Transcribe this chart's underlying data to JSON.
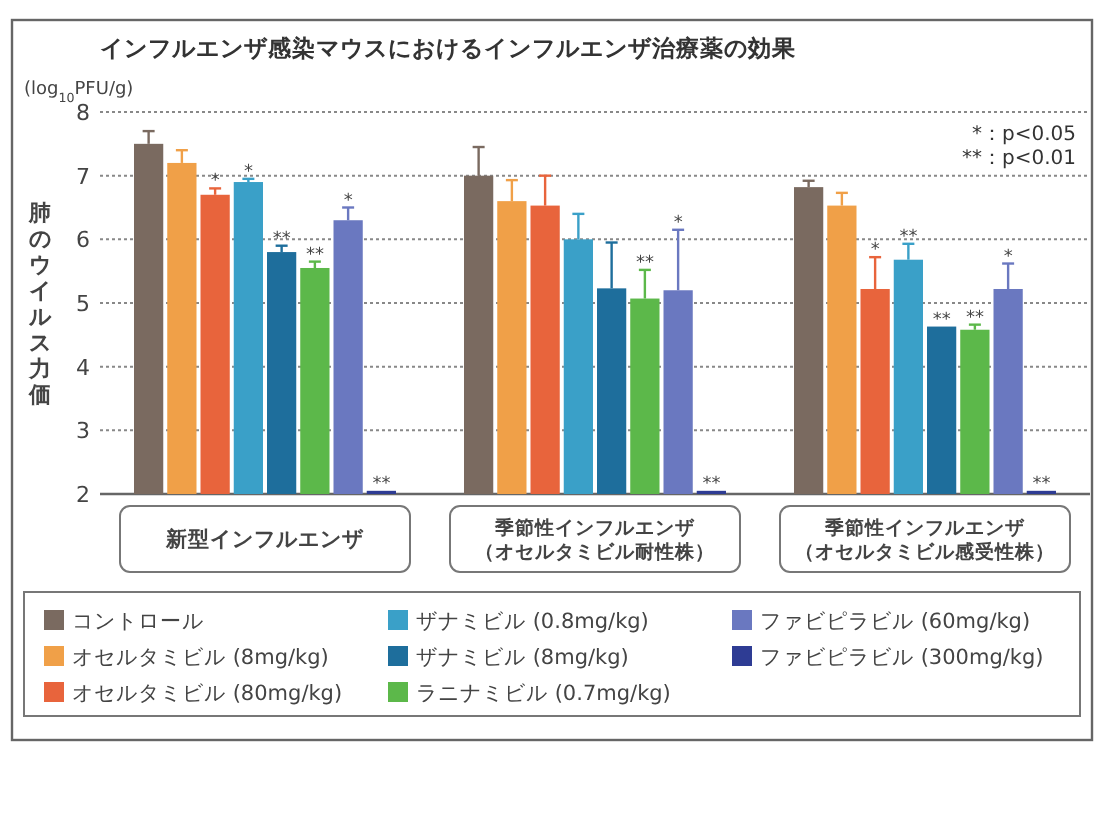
{
  "chart_data": {
    "type": "bar",
    "title": "インフルエンザ感染マウスにおけるインフルエンザ治療薬の効果",
    "ylabel": "肺のウイルス力価",
    "annotations": [
      "(log$_{10}$PFU/g)",
      "*：p<0.05",
      "**：p<0.01"
    ],
    "categories": [
      "新型インフルエンザ",
      "季節性インフルエンザ（オセルタミビル耐性株）",
      "季節性インフルエンザ（オセルタミビル感受性株）"
    ],
    "ylim": [
      2,
      8
    ],
    "yticks": [
      2,
      3,
      4,
      5,
      6,
      7,
      8
    ],
    "grid": "y",
    "legend": "bottom",
    "series": [
      {
        "name": "コントロール",
        "color": "#7a6a60",
        "values": [
          7.5,
          7.0,
          6.82
        ],
        "errors": [
          [
            7.5,
            7.7
          ],
          [
            7.0,
            7.45
          ],
          [
            6.82,
            6.92
          ]
        ],
        "value_labels": [
          null,
          null,
          null
        ]
      },
      {
        "name": "オセルタミビル (8mg/kg)",
        "color": "#f0a048",
        "values": [
          7.2,
          6.6,
          6.53
        ],
        "errors": [
          [
            7.2,
            7.4
          ],
          [
            6.6,
            6.93
          ],
          [
            6.53,
            6.73
          ]
        ],
        "value_labels": [
          null,
          null,
          null
        ]
      },
      {
        "name": "オセルタミビル (80mg/kg)",
        "color": "#e8643c",
        "values": [
          6.7,
          6.53,
          5.22
        ],
        "errors": [
          [
            6.7,
            6.8
          ],
          [
            6.53,
            7.0
          ],
          [
            5.22,
            5.72
          ]
        ],
        "value_labels": [
          "*",
          null,
          "*"
        ]
      },
      {
        "name": "ザナミビル (0.8mg/kg)",
        "color": "#3aa0c8",
        "values": [
          6.9,
          6.0,
          5.68
        ],
        "errors": [
          [
            6.9,
            6.95
          ],
          [
            6.0,
            6.4
          ],
          [
            5.68,
            5.93
          ]
        ],
        "value_labels": [
          "*",
          null,
          "**"
        ]
      },
      {
        "name": "ザナミビル (8mg/kg)",
        "color": "#1e6e9c",
        "values": [
          5.8,
          5.23,
          4.63
        ],
        "errors": [
          [
            5.8,
            5.9
          ],
          [
            5.23,
            5.95
          ],
          null
        ],
        "value_labels": [
          "**",
          null,
          "**"
        ]
      },
      {
        "name": "ラニナミビル (0.7mg/kg)",
        "color": "#5cb84a",
        "values": [
          5.55,
          5.07,
          4.58
        ],
        "errors": [
          [
            5.55,
            5.65
          ],
          [
            5.07,
            5.52
          ],
          [
            4.58,
            4.66
          ]
        ],
        "value_labels": [
          "**",
          "**",
          "**"
        ]
      },
      {
        "name": "ファビピラビル (60mg/kg)",
        "color": "#6a78c0",
        "values": [
          6.3,
          5.2,
          5.22
        ],
        "errors": [
          [
            6.3,
            6.5
          ],
          [
            5.2,
            6.15
          ],
          [
            5.22,
            5.62
          ]
        ],
        "value_labels": [
          "*",
          "*",
          "*"
        ]
      },
      {
        "name": "ファビピラビル (300mg/kg)",
        "color": "#2e3c94",
        "values": [
          2.05,
          2.05,
          2.05
        ],
        "errors": [
          null,
          null,
          null
        ],
        "value_labels": [
          "**",
          "**",
          "**"
        ]
      }
    ]
  }
}
